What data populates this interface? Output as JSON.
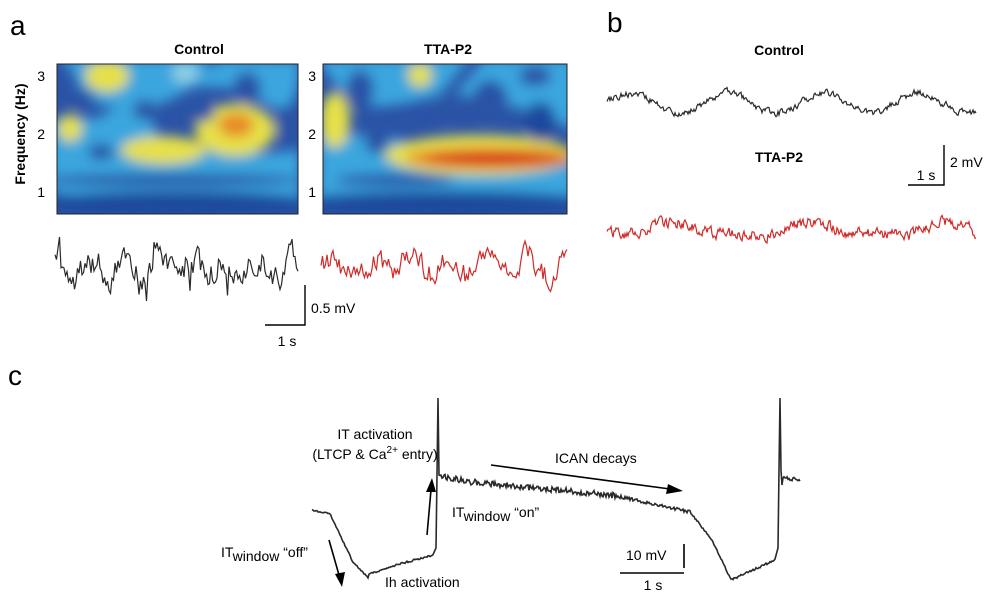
{
  "panels": {
    "a": {
      "letter": "a",
      "spectrogram_left_title": "Control",
      "spectrogram_right_title": "TTA-P2",
      "y_axis_label": "Frequency (Hz)",
      "y_ticks_left": [
        "1",
        "2",
        "3"
      ],
      "y_ticks_right": [
        "1",
        "2",
        "3"
      ],
      "scalebar_voltage": "0.5 mV",
      "scalebar_time": "1 s"
    },
    "b": {
      "letter": "b",
      "control_label": "Control",
      "drug_label": "TTA-P2",
      "scalebar_voltage": "2 mV",
      "scalebar_time": "1 s"
    },
    "c": {
      "letter": "c",
      "annotation_it_activation_line1": "IT activation",
      "annotation_it_activation_line2_pre": "(LTCP & Ca",
      "annotation_it_activation_superscript": "2+",
      "annotation_it_activation_line2_post": " entry)",
      "annotation_ican": "ICAN decays",
      "annotation_itwindow_on_pre": "IT",
      "annotation_itwindow_on_sub": "window",
      "annotation_itwindow_on_post": " “on”",
      "annotation_itwindow_off_pre": "IT",
      "annotation_itwindow_off_sub": "window",
      "annotation_itwindow_off_post": " “off”",
      "annotation_ih": "Ih activation",
      "scalebar_voltage": "10 mV",
      "scalebar_time": "1 s"
    }
  },
  "colors": {
    "control_trace": "#2a2a2a",
    "drug_trace": "#d02a28",
    "spectrogram_background": "#2b53a6",
    "spectrogram_low": "#3aa6de",
    "spectrogram_mid": "#e6e04a",
    "spectrogram_high": "#d41e1e"
  }
}
